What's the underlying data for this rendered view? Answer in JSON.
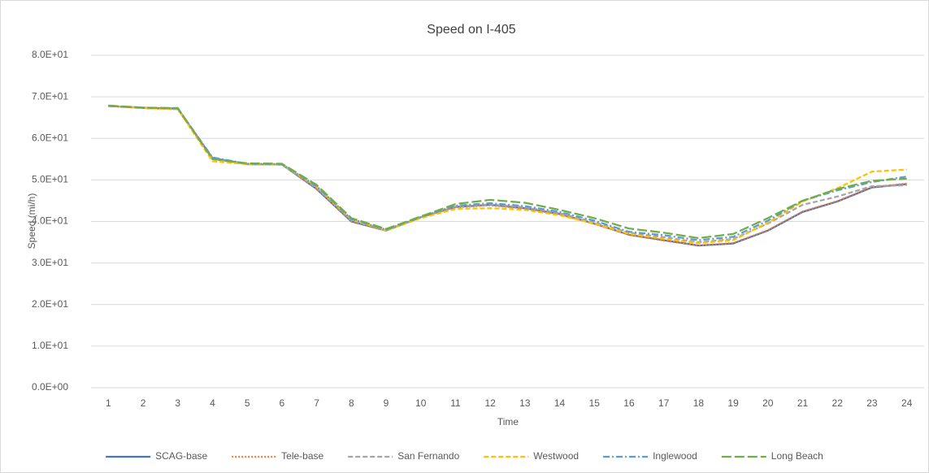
{
  "chart_data": {
    "type": "line",
    "title": "Speed on I-405",
    "x_label": "Time",
    "y_label": "Speed (mi/h)",
    "categories": [
      "1",
      "2",
      "3",
      "4",
      "5",
      "6",
      "7",
      "8",
      "9",
      "10",
      "11",
      "12",
      "13",
      "14",
      "15",
      "16",
      "17",
      "18",
      "19",
      "20",
      "21",
      "22",
      "23",
      "24"
    ],
    "ylim": [
      0,
      80
    ],
    "yticks": [
      {
        "value": 0,
        "label": "0.0E+00"
      },
      {
        "value": 10,
        "label": "1.0E+01"
      },
      {
        "value": 20,
        "label": "2.0E+01"
      },
      {
        "value": 30,
        "label": "3.0E+01"
      },
      {
        "value": 40,
        "label": "4.0E+01"
      },
      {
        "value": 50,
        "label": "5.0E+01"
      },
      {
        "value": 60,
        "label": "6.0E+01"
      },
      {
        "value": 70,
        "label": "7.0E+01"
      },
      {
        "value": 80,
        "label": "8.0E+01"
      }
    ],
    "grid": true,
    "legend": "bottom",
    "series": [
      {
        "name": "SCAG-base",
        "color": "#4472c4",
        "dash": "solid",
        "values": [
          67.8,
          67.3,
          67.2,
          55.2,
          53.8,
          53.7,
          47.8,
          40.0,
          37.8,
          41.0,
          43.5,
          44.0,
          43.2,
          41.8,
          39.5,
          36.8,
          35.5,
          34.2,
          34.7,
          37.8,
          42.3,
          44.8,
          48.2,
          49.0
        ]
      },
      {
        "name": "Tele-base",
        "color": "#ed7d31",
        "dash": "dot",
        "values": [
          67.8,
          67.3,
          67.0,
          55.0,
          53.8,
          53.7,
          47.9,
          40.1,
          37.8,
          41.0,
          43.4,
          43.9,
          43.1,
          41.7,
          39.4,
          36.8,
          35.4,
          34.2,
          34.8,
          37.9,
          42.4,
          44.9,
          48.3,
          49.1
        ]
      },
      {
        "name": "San Fernando",
        "color": "#a5a5a5",
        "dash": "dash",
        "values": [
          67.8,
          67.4,
          67.1,
          55.3,
          53.8,
          53.7,
          48.1,
          40.3,
          37.9,
          41.0,
          43.6,
          44.1,
          43.4,
          42.0,
          39.8,
          37.3,
          36.2,
          35.0,
          35.8,
          39.5,
          44.0,
          46.0,
          48.5,
          48.7
        ]
      },
      {
        "name": "Westwood",
        "color": "#ffc000",
        "dash": "dash",
        "values": [
          67.8,
          67.3,
          67.0,
          54.5,
          53.8,
          53.8,
          48.4,
          40.5,
          37.8,
          40.8,
          43.0,
          43.2,
          42.8,
          41.5,
          39.5,
          37.0,
          35.8,
          34.8,
          35.5,
          39.7,
          44.8,
          48.0,
          52.0,
          52.5
        ]
      },
      {
        "name": "Inglewood",
        "color": "#5b9bd5",
        "dash": "dashdot",
        "values": [
          67.8,
          67.4,
          67.2,
          55.4,
          53.9,
          53.8,
          48.5,
          40.6,
          38.0,
          41.1,
          43.8,
          44.4,
          43.7,
          42.3,
          40.2,
          37.5,
          36.7,
          35.5,
          36.3,
          40.2,
          45.0,
          47.5,
          49.5,
          50.8
        ]
      },
      {
        "name": "Long Beach",
        "color": "#70ad47",
        "dash": "longdash",
        "values": [
          67.9,
          67.4,
          67.3,
          55.0,
          54.0,
          53.9,
          48.8,
          40.8,
          38.2,
          41.2,
          44.2,
          45.2,
          44.5,
          42.8,
          40.8,
          38.3,
          37.3,
          36.0,
          37.0,
          40.8,
          45.0,
          47.8,
          49.8,
          50.3
        ]
      }
    ]
  }
}
